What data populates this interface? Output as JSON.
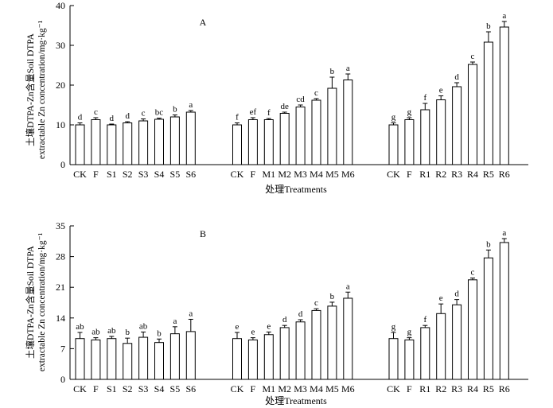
{
  "ytitle_line1": "土壤DTPA-Zn含量Soil DTPA",
  "ytitle_line2": "extractable Zn concentration/mg·kg⁻¹",
  "xlabel": "处理Treatments",
  "chart_data": [
    {
      "panel": "A",
      "type": "bar",
      "ylim": [
        0,
        40
      ],
      "yticks": [
        0,
        10,
        20,
        30,
        40
      ],
      "groups": [
        {
          "categories": [
            "CK",
            "F",
            "S1",
            "S2",
            "S3",
            "S4",
            "S5",
            "S6"
          ],
          "values": [
            10.0,
            11.3,
            10.0,
            10.5,
            11.0,
            11.4,
            12.0,
            13.2
          ],
          "errors": [
            0.5,
            0.5,
            0.2,
            0.3,
            0.5,
            0.3,
            0.5,
            0.4
          ],
          "letters": [
            "d",
            "c",
            "d",
            "d",
            "c",
            "bc",
            "b",
            "a"
          ]
        },
        {
          "categories": [
            "CK",
            "F",
            "M1",
            "M2",
            "M3",
            "M4",
            "M5",
            "M6"
          ],
          "values": [
            10.0,
            11.3,
            11.3,
            12.9,
            14.5,
            16.2,
            19.2,
            21.3
          ],
          "errors": [
            0.5,
            0.5,
            0.3,
            0.3,
            0.5,
            0.4,
            2.8,
            1.5
          ],
          "letters": [
            "f",
            "ef",
            "f",
            "de",
            "cd",
            "c",
            "b",
            "a"
          ]
        },
        {
          "categories": [
            "CK",
            "F",
            "R1",
            "R2",
            "R3",
            "R4",
            "R5",
            "R6"
          ],
          "values": [
            10.0,
            11.3,
            13.8,
            16.3,
            19.6,
            25.2,
            30.8,
            34.6
          ],
          "errors": [
            0.5,
            0.5,
            1.6,
            1.0,
            1.0,
            0.6,
            2.6,
            1.4
          ],
          "letters": [
            "g",
            "g",
            "f",
            "e",
            "d",
            "c",
            "b",
            "a"
          ]
        }
      ]
    },
    {
      "panel": "B",
      "type": "bar",
      "ylim": [
        0,
        35
      ],
      "yticks": [
        0,
        7,
        14,
        21,
        28,
        35
      ],
      "groups": [
        {
          "categories": [
            "CK",
            "F",
            "S1",
            "S2",
            "S3",
            "S4",
            "S5",
            "S6"
          ],
          "values": [
            9.3,
            9.0,
            9.3,
            8.2,
            9.6,
            8.4,
            10.4,
            10.9
          ],
          "errors": [
            1.4,
            0.5,
            0.5,
            1.2,
            1.2,
            0.8,
            1.6,
            2.8
          ],
          "letters": [
            "ab",
            "ab",
            "ab",
            "b",
            "ab",
            "b",
            "a",
            "a"
          ]
        },
        {
          "categories": [
            "CK",
            "F",
            "M1",
            "M2",
            "M3",
            "M4",
            "M5",
            "M6"
          ],
          "values": [
            9.3,
            9.0,
            10.2,
            11.8,
            13.1,
            15.7,
            16.7,
            18.5
          ],
          "errors": [
            1.4,
            0.5,
            0.6,
            0.5,
            0.5,
            0.4,
            0.9,
            1.4
          ],
          "letters": [
            "e",
            "e",
            "e",
            "d",
            "d",
            "c",
            "b",
            "a"
          ]
        },
        {
          "categories": [
            "CK",
            "F",
            "R1",
            "R2",
            "R3",
            "R4",
            "R5",
            "R6"
          ],
          "values": [
            9.3,
            9.0,
            11.8,
            15.0,
            17.0,
            22.7,
            27.7,
            31.2
          ],
          "errors": [
            1.4,
            0.5,
            0.5,
            2.2,
            1.2,
            0.4,
            1.8,
            0.9
          ],
          "letters": [
            "g",
            "g",
            "f",
            "e",
            "d",
            "c",
            "b",
            "a"
          ]
        }
      ]
    }
  ]
}
